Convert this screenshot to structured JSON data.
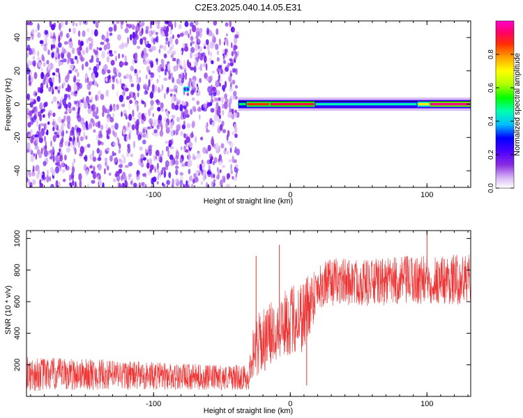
{
  "title": "C2E3.2025.040.14.05.E31",
  "chart_data": [
    {
      "type": "heatmap",
      "xlabel": "Height of straight line (km)",
      "ylabel": "Frequency (Hz)",
      "xlim": [
        -193,
        132
      ],
      "ylim": [
        -50,
        50
      ],
      "xticks": [
        -100,
        0,
        100
      ],
      "yticks": [
        -40,
        -20,
        0,
        20,
        40
      ],
      "colorbar": {
        "label": "Normalized spectral amplitude",
        "range": [
          0,
          1
        ],
        "ticks": [
          "0.0",
          "0.2",
          "0.4",
          "0.6",
          "0.8"
        ],
        "colors": [
          "#ffffff",
          "#d9b8f5",
          "#8a2be2",
          "#4b00ff",
          "#0000ff",
          "#00bfff",
          "#00ffb0",
          "#00ff00",
          "#b0ff00",
          "#ffff00",
          "#ffa500",
          "#ff3000",
          "#ff0066",
          "#ff00cc"
        ]
      },
      "noise_region_x": [
        -193,
        -38
      ],
      "signal_band": {
        "x_start": -38,
        "x_end": 132,
        "center_freq": 0,
        "half_width": 2.5,
        "segments": [
          {
            "x": [
              -38,
              -32
            ],
            "amplitude": 0.5
          },
          {
            "x": [
              -32,
              -15
            ],
            "amplitude": 0.85
          },
          {
            "x": [
              -15,
              18
            ],
            "amplitude": 0.9
          },
          {
            "x": [
              18,
              93
            ],
            "amplitude": 0.45
          },
          {
            "x": [
              93,
              102
            ],
            "amplitude": 0.7
          },
          {
            "x": [
              102,
              132
            ],
            "amplitude": 0.95
          }
        ]
      },
      "blobs": [
        {
          "x": -77,
          "y": 9,
          "amplitude": 0.2
        },
        {
          "x": -75,
          "y": 9,
          "amplitude": 0.2
        }
      ]
    },
    {
      "type": "line",
      "xlabel": "Height of straight line (km)",
      "ylabel": "SNR (10 * v/v)",
      "xlim": [
        -193,
        132
      ],
      "ylim": [
        0,
        1050
      ],
      "xticks": [
        -100,
        0,
        100
      ],
      "yticks": [
        200,
        400,
        600,
        800,
        1000
      ],
      "color": "#ee3333",
      "series_profile": {
        "x": [
          -193,
          -150,
          -100,
          -60,
          -30,
          -28,
          -20,
          -10,
          0,
          10,
          15,
          20,
          35,
          60,
          100,
          132
        ],
        "mean": [
          140,
          140,
          130,
          120,
          120,
          300,
          350,
          430,
          480,
          520,
          600,
          700,
          730,
          720,
          740,
          740
        ],
        "spread": [
          110,
          100,
          90,
          80,
          80,
          200,
          200,
          200,
          220,
          250,
          200,
          150,
          150,
          150,
          160,
          160
        ]
      },
      "spikes": [
        {
          "x": -25,
          "y": 890
        },
        {
          "x": -8,
          "y": 960
        },
        {
          "x": 12,
          "y": 70
        },
        {
          "x": 100,
          "y": 1040
        }
      ]
    }
  ]
}
